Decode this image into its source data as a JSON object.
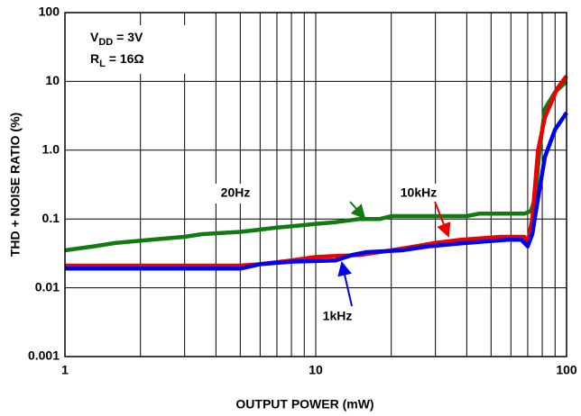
{
  "chart_data": {
    "type": "line",
    "xlabel": "OUTPUT POWER (mW)",
    "ylabel": "THD + NOISE RATIO (%)",
    "xscale": "log",
    "yscale": "log",
    "xlim": [
      1,
      100
    ],
    "ylim": [
      0.001,
      100
    ],
    "xticks": [
      1,
      10,
      100
    ],
    "yticks": [
      0.001,
      0.01,
      0.1,
      {
        "value": 1,
        "label": "1.0"
      },
      10,
      100
    ],
    "grid": true,
    "xminor_grid": true,
    "annotations": [
      {
        "text": "V",
        "sub": "DD",
        "rest": " = 3V"
      },
      {
        "text": "R",
        "sub": "L",
        "rest": " = 16Ω"
      }
    ],
    "series": [
      {
        "name": "20Hz",
        "color": "#117a11",
        "x": [
          1,
          1.3,
          1.6,
          2.2,
          3,
          3.5,
          5,
          6,
          7,
          8.5,
          10,
          12,
          15,
          18,
          20,
          40,
          45,
          68,
          72,
          75,
          78,
          82,
          90,
          100
        ],
        "values": [
          0.035,
          0.04,
          0.045,
          0.05,
          0.055,
          0.06,
          0.065,
          0.07,
          0.075,
          0.08,
          0.085,
          0.09,
          0.1,
          0.1,
          0.11,
          0.11,
          0.12,
          0.12,
          0.13,
          0.2,
          1,
          4,
          7,
          10
        ]
      },
      {
        "name": "10kHz",
        "color": "#ee0000",
        "x": [
          1,
          5,
          6,
          8,
          10,
          15,
          20,
          25,
          30,
          38,
          55,
          68,
          70,
          73,
          77,
          82,
          92,
          100
        ],
        "values": [
          0.021,
          0.021,
          0.022,
          0.025,
          0.028,
          0.03,
          0.035,
          0.04,
          0.045,
          0.05,
          0.055,
          0.055,
          0.045,
          0.1,
          1,
          3,
          8,
          12
        ]
      },
      {
        "name": "1kHz",
        "color": "#0000ee",
        "x": [
          1,
          5,
          6,
          8,
          12,
          14,
          16,
          22,
          28,
          40,
          58,
          66,
          70,
          73,
          77,
          82,
          90,
          100
        ],
        "values": [
          0.019,
          0.019,
          0.022,
          0.024,
          0.025,
          0.03,
          0.033,
          0.035,
          0.04,
          0.045,
          0.05,
          0.05,
          0.04,
          0.06,
          0.2,
          0.8,
          2,
          3.5
        ]
      }
    ]
  }
}
